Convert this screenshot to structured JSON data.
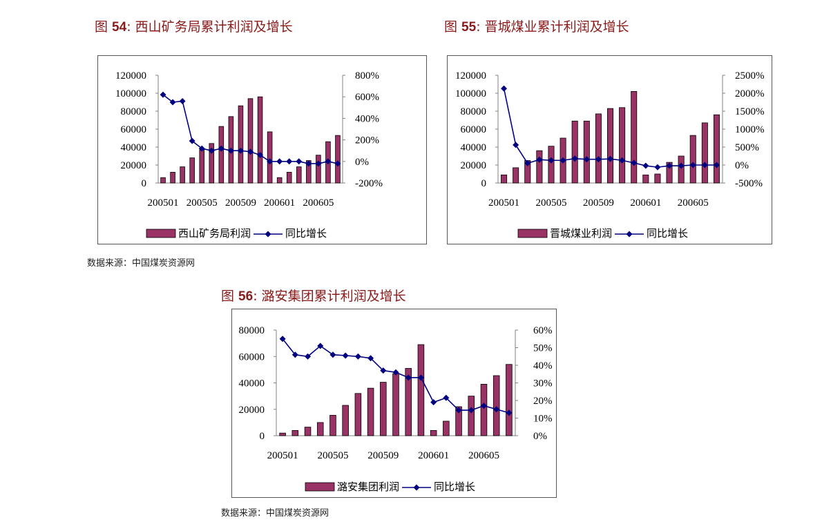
{
  "source_label": "数据来源：中国煤炭资源网",
  "colors": {
    "bar": "#993366",
    "line": "#000080",
    "title": "#8b1a1a"
  },
  "figures": [
    {
      "prefix": "图 ",
      "num": "54",
      "sep": ":",
      "name": "西山矿务局累计利润及增长"
    },
    {
      "prefix": "图 ",
      "num": "55",
      "sep": ":",
      "name": "晋城煤业累计利润及增长"
    },
    {
      "prefix": "图 ",
      "num": "56",
      "sep": ":",
      "name": "潞安集团累计利润及增长"
    }
  ],
  "chart_data": [
    {
      "type": "bar",
      "categories": [
        "200501",
        "200502",
        "200503",
        "200504",
        "200505",
        "200506",
        "200507",
        "200508",
        "200509",
        "200510",
        "200511",
        "200512",
        "200601",
        "200602",
        "200603",
        "200604",
        "200605",
        "200606",
        "200607"
      ],
      "x_tick_labels": [
        "200501",
        "200505",
        "200509",
        "200601",
        "200605"
      ],
      "ylim": [
        0,
        120000
      ],
      "y_ticks": [
        "120000",
        "100000",
        "80000",
        "60000",
        "40000",
        "20000",
        "0"
      ],
      "y2lim": [
        -200,
        800
      ],
      "y2_ticks": [
        "800%",
        "600%",
        "400%",
        "200%",
        "0%",
        "-200%"
      ],
      "series": [
        {
          "name": "西山矿务局利润",
          "type": "bar",
          "axis": "left",
          "values": [
            6000,
            12000,
            18000,
            28000,
            37000,
            44000,
            63000,
            74000,
            86000,
            94000,
            96000,
            57000,
            6000,
            12000,
            18000,
            25000,
            31000,
            46000,
            53000
          ]
        },
        {
          "name": "同比增长",
          "type": "line",
          "axis": "right",
          "unit": "%",
          "values": [
            620,
            550,
            560,
            190,
            120,
            100,
            120,
            100,
            100,
            90,
            60,
            0,
            0,
            0,
            0,
            -20,
            -20,
            0,
            -20
          ]
        }
      ]
    },
    {
      "type": "bar",
      "categories": [
        "200501",
        "200502",
        "200503",
        "200504",
        "200505",
        "200506",
        "200507",
        "200508",
        "200509",
        "200510",
        "200511",
        "200512",
        "200601",
        "200602",
        "200603",
        "200604",
        "200605",
        "200606",
        "200607"
      ],
      "x_tick_labels": [
        "200501",
        "200505",
        "200509",
        "200601",
        "200605"
      ],
      "ylim": [
        0,
        120000
      ],
      "y_ticks": [
        "120000",
        "100000",
        "80000",
        "60000",
        "40000",
        "20000",
        "0"
      ],
      "y2lim": [
        -500,
        2500
      ],
      "y2_ticks": [
        "2500%",
        "2000%",
        "1500%",
        "1000%",
        "500%",
        "0%",
        "-500%"
      ],
      "series": [
        {
          "name": "晋城煤业利润",
          "type": "bar",
          "axis": "left",
          "values": [
            9000,
            17000,
            25000,
            36000,
            41000,
            50000,
            69000,
            69000,
            77000,
            83000,
            84000,
            102000,
            9000,
            10000,
            23000,
            30000,
            53000,
            67000,
            76000
          ]
        },
        {
          "name": "同比增长",
          "type": "line",
          "axis": "right",
          "unit": "%",
          "values": [
            2130,
            560,
            50,
            150,
            130,
            130,
            180,
            160,
            160,
            170,
            130,
            60,
            -20,
            -60,
            -20,
            -20,
            0,
            0,
            0
          ]
        }
      ]
    },
    {
      "type": "bar",
      "categories": [
        "200501",
        "200502",
        "200503",
        "200504",
        "200505",
        "200506",
        "200507",
        "200508",
        "200509",
        "200510",
        "200511",
        "200512",
        "200601",
        "200602",
        "200603",
        "200604",
        "200605",
        "200606",
        "200607"
      ],
      "x_tick_labels": [
        "200501",
        "200505",
        "200509",
        "200601",
        "200605"
      ],
      "ylim": [
        0,
        80000
      ],
      "y_ticks": [
        "80000",
        "60000",
        "40000",
        "20000",
        "0"
      ],
      "y2lim": [
        0,
        60
      ],
      "y2_ticks": [
        "60%",
        "50%",
        "40%",
        "30%",
        "20%",
        "10%",
        "0%"
      ],
      "series": [
        {
          "name": "潞安集团利润",
          "type": "bar",
          "axis": "left",
          "values": [
            2000,
            4000,
            6500,
            10000,
            15500,
            23000,
            32000,
            36000,
            40500,
            47000,
            51000,
            69000,
            4000,
            11000,
            22000,
            30000,
            39000,
            45500,
            54000
          ]
        },
        {
          "name": "同比增长",
          "type": "line",
          "axis": "right",
          "unit": "%",
          "values": [
            55,
            46,
            45,
            51,
            46,
            45.5,
            45,
            44,
            37,
            36,
            33,
            33,
            19,
            21.5,
            14.5,
            14.5,
            17,
            15,
            13
          ]
        }
      ]
    }
  ]
}
